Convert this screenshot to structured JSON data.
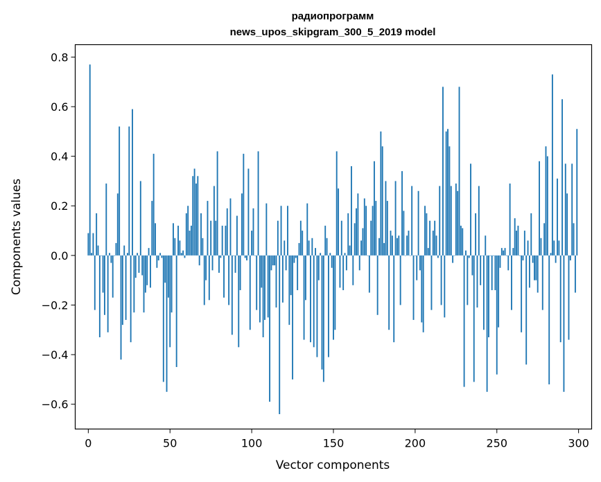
{
  "chart_data": {
    "type": "bar",
    "title": "радиопрограмм",
    "subtitle": "news_upos_skipgram_300_5_2019 model",
    "xlabel": "Vector components",
    "ylabel": "Components values",
    "xlim": [
      -8,
      308
    ],
    "ylim": [
      -0.7,
      0.85
    ],
    "xticks": [
      0,
      50,
      100,
      150,
      200,
      250,
      300
    ],
    "xtick_labels": [
      "0",
      "50",
      "100",
      "150",
      "200",
      "250",
      "300"
    ],
    "yticks": [
      -0.6,
      -0.4,
      -0.2,
      0.0,
      0.2,
      0.4,
      0.6,
      0.8
    ],
    "ytick_labels": [
      "−0.6",
      "−0.4",
      "−0.2",
      "0.0",
      "0.2",
      "0.4",
      "0.6",
      "0.8"
    ],
    "grid": false,
    "bar_color": "#1f77b4",
    "x": [
      0,
      1,
      2,
      3,
      4,
      5,
      6,
      7,
      8,
      9,
      10,
      11,
      12,
      13,
      14,
      15,
      16,
      17,
      18,
      19,
      20,
      21,
      22,
      23,
      24,
      25,
      26,
      27,
      28,
      29,
      30,
      31,
      32,
      33,
      34,
      35,
      36,
      37,
      38,
      39,
      40,
      41,
      42,
      43,
      44,
      45,
      46,
      47,
      48,
      49,
      50,
      51,
      52,
      53,
      54,
      55,
      56,
      57,
      58,
      59,
      60,
      61,
      62,
      63,
      64,
      65,
      66,
      67,
      68,
      69,
      70,
      71,
      72,
      73,
      74,
      75,
      76,
      77,
      78,
      79,
      80,
      81,
      82,
      83,
      84,
      85,
      86,
      87,
      88,
      89,
      90,
      91,
      92,
      93,
      94,
      95,
      96,
      97,
      98,
      99,
      100,
      101,
      102,
      103,
      104,
      105,
      106,
      107,
      108,
      109,
      110,
      111,
      112,
      113,
      114,
      115,
      116,
      117,
      118,
      119,
      120,
      121,
      122,
      123,
      124,
      125,
      126,
      127,
      128,
      129,
      130,
      131,
      132,
      133,
      134,
      135,
      136,
      137,
      138,
      139,
      140,
      141,
      142,
      143,
      144,
      145,
      146,
      147,
      148,
      149,
      150,
      151,
      152,
      153,
      154,
      155,
      156,
      157,
      158,
      159,
      160,
      161,
      162,
      163,
      164,
      165,
      166,
      167,
      168,
      169,
      170,
      171,
      172,
      173,
      174,
      175,
      176,
      177,
      178,
      179,
      180,
      181,
      182,
      183,
      184,
      185,
      186,
      187,
      188,
      189,
      190,
      191,
      192,
      193,
      194,
      195,
      196,
      197,
      198,
      199,
      200,
      201,
      202,
      203,
      204,
      205,
      206,
      207,
      208,
      209,
      210,
      211,
      212,
      213,
      214,
      215,
      216,
      217,
      218,
      219,
      220,
      221,
      222,
      223,
      224,
      225,
      226,
      227,
      228,
      229,
      230,
      231,
      232,
      233,
      234,
      235,
      236,
      237,
      238,
      239,
      240,
      241,
      242,
      243,
      244,
      245,
      246,
      247,
      248,
      249,
      250,
      251,
      252,
      253,
      254,
      255,
      256,
      257,
      258,
      259,
      260,
      261,
      262,
      263,
      264,
      265,
      266,
      267,
      268,
      269,
      270,
      271,
      272,
      273,
      274,
      275,
      276,
      277,
      278,
      279,
      280,
      281,
      282,
      283,
      284,
      285,
      286,
      287,
      288,
      289,
      290,
      291,
      292,
      293,
      294,
      295,
      296,
      297,
      298,
      299
    ],
    "values": [
      0.09,
      0.77,
      0.01,
      0.09,
      -0.22,
      0.17,
      0.04,
      -0.33,
      0.0,
      -0.15,
      -0.24,
      0.29,
      -0.31,
      0.01,
      -0.03,
      -0.17,
      0.0,
      0.05,
      0.25,
      0.52,
      -0.42,
      -0.28,
      0.04,
      -0.26,
      0.01,
      0.52,
      -0.35,
      0.59,
      -0.23,
      -0.09,
      0.01,
      -0.07,
      0.3,
      -0.08,
      -0.23,
      -0.15,
      -0.12,
      0.03,
      -0.13,
      0.22,
      0.41,
      0.13,
      -0.05,
      -0.02,
      0.01,
      -0.01,
      -0.51,
      -0.11,
      -0.55,
      -0.17,
      -0.37,
      -0.23,
      0.13,
      0.07,
      -0.45,
      0.12,
      0.06,
      0.01,
      0.02,
      -0.01,
      0.17,
      0.2,
      0.1,
      0.12,
      0.32,
      0.35,
      0.29,
      0.32,
      -0.04,
      0.17,
      0.07,
      -0.2,
      -0.1,
      0.22,
      -0.18,
      0.14,
      -0.06,
      0.28,
      0.14,
      0.42,
      -0.07,
      -0.01,
      0.12,
      -0.17,
      0.12,
      0.19,
      -0.2,
      0.23,
      -0.32,
      0.0,
      -0.07,
      0.16,
      -0.37,
      -0.14,
      0.25,
      0.41,
      -0.01,
      -0.02,
      0.35,
      -0.3,
      0.1,
      0.19,
      0.0,
      -0.22,
      0.42,
      -0.27,
      -0.13,
      -0.33,
      -0.26,
      0.21,
      -0.25,
      -0.59,
      -0.06,
      -0.04,
      -0.04,
      -0.21,
      0.14,
      -0.64,
      0.2,
      -0.19,
      0.06,
      -0.06,
      0.2,
      -0.28,
      -0.16,
      -0.5,
      -0.03,
      -0.01,
      -0.14,
      0.05,
      0.14,
      0.1,
      -0.34,
      -0.18,
      0.21,
      0.06,
      -0.35,
      0.07,
      -0.37,
      0.03,
      -0.41,
      -0.1,
      0.01,
      -0.46,
      -0.51,
      0.12,
      0.07,
      -0.41,
      0.01,
      -0.05,
      -0.34,
      -0.3,
      0.42,
      0.27,
      -0.13,
      0.14,
      -0.14,
      0.01,
      -0.06,
      0.17,
      0.04,
      0.36,
      -0.12,
      0.13,
      0.19,
      0.25,
      -0.06,
      0.06,
      0.11,
      0.23,
      0.2,
      0.0,
      -0.15,
      0.14,
      0.2,
      0.38,
      0.22,
      -0.24,
      0.07,
      0.5,
      0.44,
      0.05,
      0.3,
      0.22,
      -0.3,
      0.1,
      0.08,
      -0.35,
      0.3,
      0.07,
      0.08,
      -0.2,
      0.34,
      0.18,
      0.0,
      0.08,
      0.1,
      0.0,
      0.28,
      -0.26,
      0.0,
      -0.1,
      0.26,
      -0.06,
      -0.27,
      -0.31,
      0.2,
      0.17,
      0.03,
      0.14,
      -0.22,
      0.1,
      0.14,
      0.08,
      -0.01,
      0.28,
      -0.2,
      0.68,
      -0.25,
      0.5,
      0.51,
      0.44,
      0.28,
      -0.03,
      0.0,
      0.29,
      0.26,
      0.68,
      0.12,
      0.11,
      -0.53,
      0.02,
      -0.2,
      -0.01,
      0.37,
      -0.08,
      -0.51,
      0.17,
      -0.21,
      0.28,
      -0.12,
      0.0,
      -0.3,
      0.08,
      -0.55,
      -0.33,
      0.0,
      -0.14,
      0.0,
      -0.14,
      -0.48,
      -0.29,
      -0.05,
      0.03,
      0.02,
      0.03,
      0.0,
      -0.06,
      0.29,
      -0.22,
      0.03,
      0.15,
      0.1,
      0.12,
      0.0,
      -0.31,
      -0.02,
      0.1,
      -0.44,
      0.06,
      -0.13,
      0.17,
      -0.03,
      -0.1,
      -0.1,
      -0.15,
      0.38,
      0.07,
      -0.22,
      0.13,
      0.44,
      0.4,
      -0.52,
      0.01,
      0.73,
      0.06,
      -0.03,
      0.31,
      0.06,
      -0.35,
      0.63,
      -0.55,
      0.37,
      0.25,
      -0.34,
      -0.02,
      0.37,
      0.13,
      -0.15,
      0.51
    ]
  }
}
